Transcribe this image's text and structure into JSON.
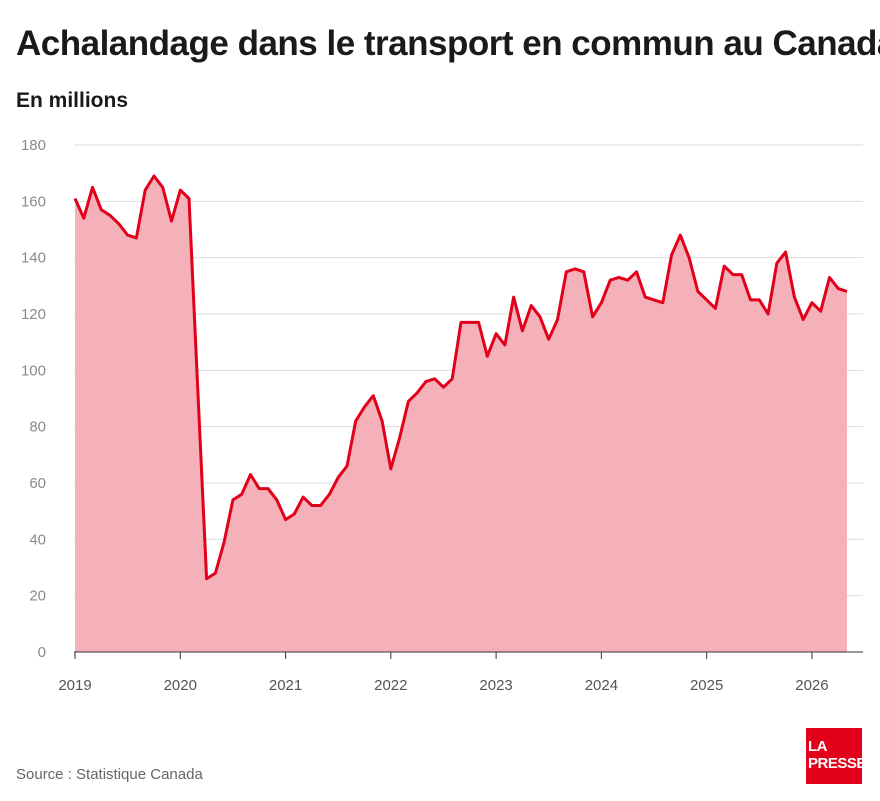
{
  "title": "Achalandage dans le transport en commun au Canada",
  "subtitle": "En millions",
  "source": "Source : Statistique Canada",
  "logo": {
    "line1": "LA",
    "line2": "PRESSE"
  },
  "colors": {
    "line": "#e2001a",
    "fill": "#f4b1b9",
    "grid": "#dcdcdc",
    "axis": "#333333",
    "logo": "#e2001a"
  },
  "chart_data": {
    "type": "area",
    "title": "Achalandage dans le transport en commun au Canada",
    "ylabel": "En millions",
    "xlabel": "",
    "ylim": [
      0,
      180
    ],
    "yticks": [
      0,
      20,
      40,
      60,
      80,
      100,
      120,
      140,
      160,
      180
    ],
    "xticks": [
      "2019",
      "2020",
      "2021",
      "2022",
      "2023",
      "2024",
      "2025",
      "2026"
    ],
    "grid": true,
    "start": "2019-01",
    "frequency": "monthly",
    "series": [
      {
        "values": [
          161,
          154,
          165,
          157,
          155,
          152,
          148,
          147,
          164,
          169,
          165,
          153,
          164,
          161,
          93,
          26,
          28,
          39,
          54,
          56,
          63,
          58,
          58,
          54,
          47,
          49,
          55,
          52,
          52,
          56,
          62,
          66,
          82,
          87,
          91,
          82,
          65,
          76,
          89,
          92,
          96,
          97,
          94,
          97,
          117,
          117,
          117,
          105,
          113,
          109,
          126,
          114,
          123,
          119,
          111,
          118,
          135,
          136,
          135,
          119,
          124,
          132,
          133,
          132,
          135,
          126,
          125,
          124,
          141,
          148,
          140,
          128,
          125,
          122,
          137,
          134,
          134,
          125,
          125,
          120,
          138,
          142,
          126,
          118,
          124,
          121,
          133,
          129,
          128
        ]
      }
    ]
  }
}
